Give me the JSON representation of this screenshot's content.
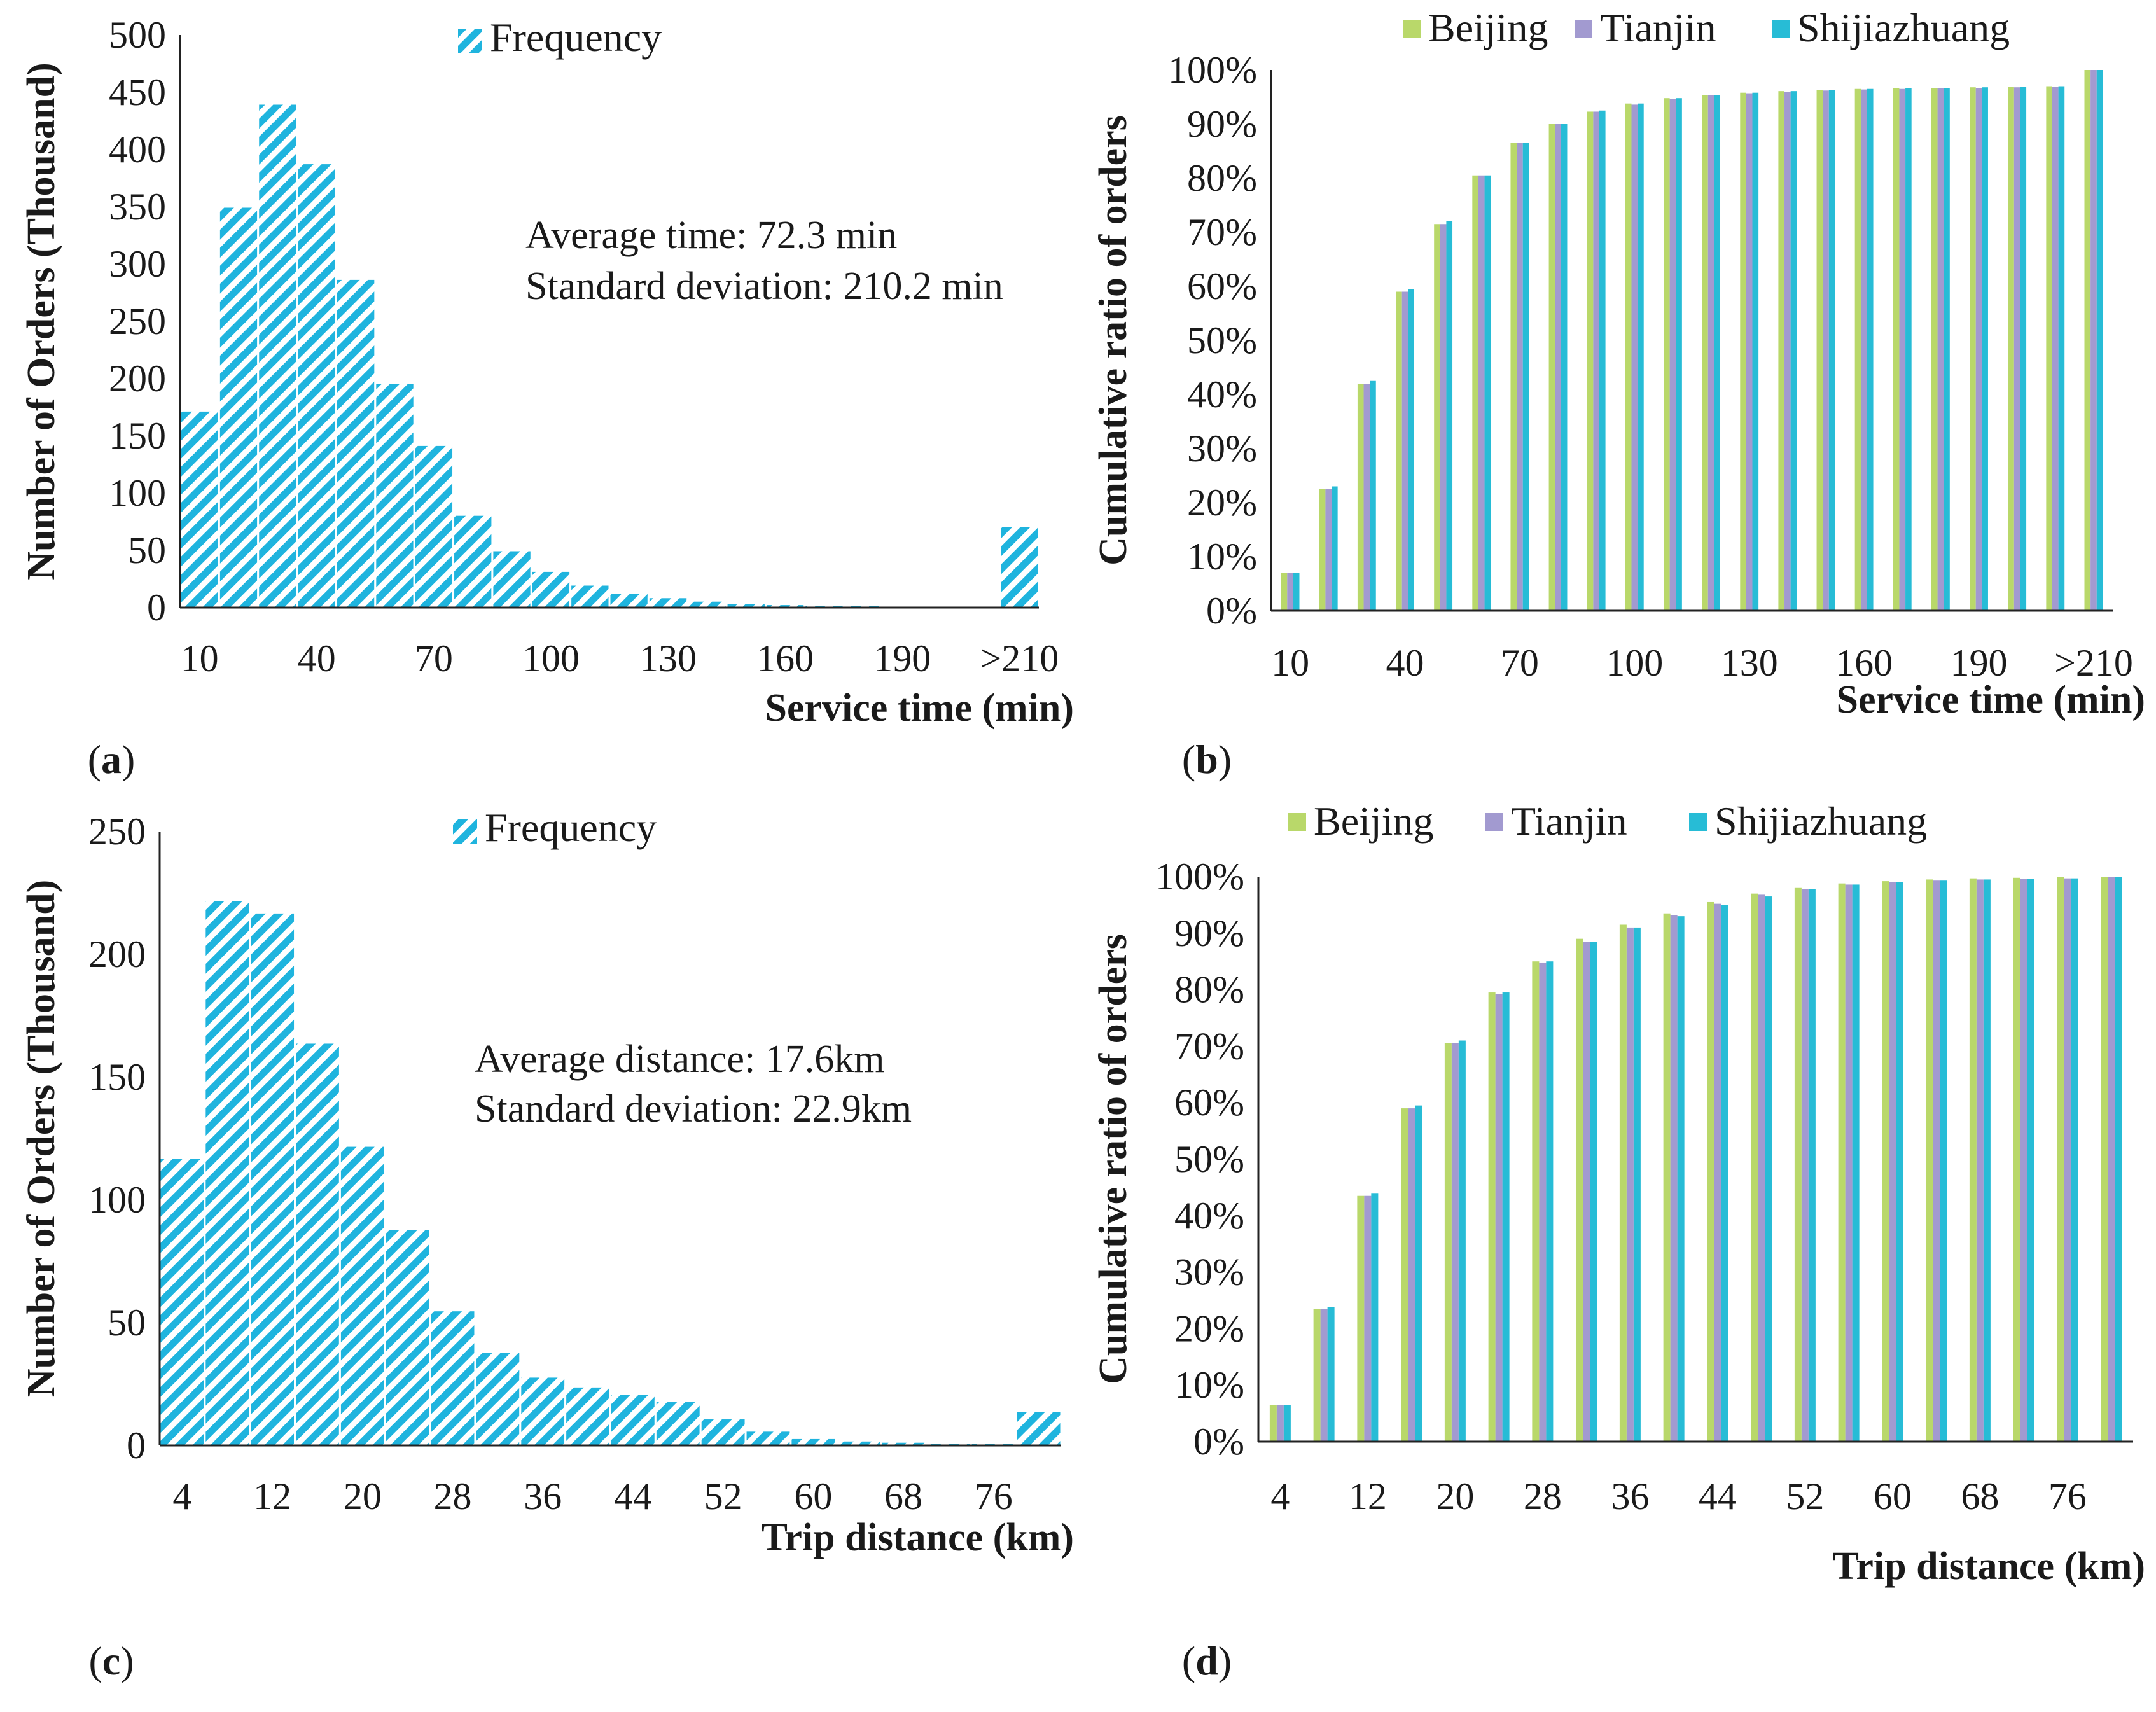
{
  "colors": {
    "hist": "#1fb4de",
    "beijing": "#b9d86a",
    "tianjin": "#a29ad0",
    "shijiazhuang": "#27bcd6",
    "axis": "#222222"
  },
  "chart_data": [
    {
      "panel": "(a)",
      "type": "bar",
      "title": "",
      "legend": [
        "Frequency"
      ],
      "annotations": [
        "Average time: 72.3 min",
        "Standard deviation: 210.2 min"
      ],
      "xlabel": "Service time (min)",
      "ylabel": "Number of Orders (Thousand)",
      "ylim": [
        0,
        500
      ],
      "yticks": [
        "0",
        "50",
        "100",
        "150",
        "200",
        "250",
        "300",
        "350",
        "400",
        "450",
        "500"
      ],
      "xticks": [
        "10",
        "40",
        "70",
        "100",
        "130",
        "160",
        "190",
        ">210"
      ],
      "xtick_positions": [
        0,
        3,
        6,
        9,
        12,
        15,
        18,
        21
      ],
      "values": [
        172,
        350,
        440,
        388,
        287,
        196,
        142,
        81,
        50,
        32,
        20,
        13,
        9,
        6,
        4,
        3,
        2,
        2,
        1,
        1,
        1,
        71
      ]
    },
    {
      "panel": "(b)",
      "type": "bar",
      "legend": [
        "Beijing",
        "Tianjin",
        "Shijiazhuang"
      ],
      "xlabel": "Service time (min)",
      "ylabel": "Cumulative ratio of orders",
      "ylim": [
        0,
        100
      ],
      "yticks": [
        "0%",
        "10%",
        "20%",
        "30%",
        "40%",
        "50%",
        "60%",
        "70%",
        "80%",
        "90%",
        "100%"
      ],
      "xticks": [
        "10",
        "40",
        "70",
        "100",
        "130",
        "160",
        "190",
        ">210"
      ],
      "xtick_positions": [
        0,
        3,
        6,
        9,
        12,
        15,
        18,
        21
      ],
      "series": [
        {
          "name": "Beijing",
          "values": [
            7,
            22.5,
            42,
            59,
            71.5,
            80.5,
            86.5,
            90,
            92.3,
            93.8,
            94.8,
            95.4,
            95.8,
            96.1,
            96.3,
            96.5,
            96.6,
            96.7,
            96.8,
            96.9,
            97,
            100
          ]
        },
        {
          "name": "Tianjin",
          "values": [
            7,
            22.5,
            42,
            59,
            71.5,
            80.5,
            86.5,
            90,
            92.3,
            93.6,
            94.7,
            95.3,
            95.7,
            96,
            96.2,
            96.4,
            96.5,
            96.6,
            96.7,
            96.8,
            96.9,
            100
          ]
        },
        {
          "name": "Shijiazhuang",
          "values": [
            7,
            23,
            42.5,
            59.5,
            72,
            80.5,
            86.5,
            90,
            92.5,
            93.8,
            94.8,
            95.4,
            95.8,
            96.1,
            96.3,
            96.5,
            96.6,
            96.7,
            96.8,
            96.9,
            97,
            100
          ]
        }
      ]
    },
    {
      "panel": "(c)",
      "type": "bar",
      "legend": [
        "Frequency"
      ],
      "annotations": [
        "Average distance: 17.6km",
        "Standard deviation: 22.9km"
      ],
      "xlabel": "Trip distance (km)",
      "ylabel": "Number of Orders (Thousand)",
      "ylim": [
        0,
        250
      ],
      "yticks": [
        "0",
        "50",
        "100",
        "150",
        "200",
        "250"
      ],
      "xticks": [
        "4",
        "12",
        "20",
        "28",
        "36",
        "44",
        "52",
        "60",
        "68",
        "76"
      ],
      "xtick_positions": [
        0,
        2,
        4,
        6,
        8,
        10,
        12,
        14,
        16,
        18
      ],
      "values": [
        117,
        222,
        217,
        164,
        122,
        88,
        55,
        38,
        28,
        24,
        21,
        18,
        11,
        6,
        3,
        2,
        1.5,
        1,
        1,
        14
      ]
    },
    {
      "panel": "(d)",
      "type": "bar",
      "legend": [
        "Beijing",
        "Tianjin",
        "Shijiazhuang"
      ],
      "xlabel": "Trip distance (km)",
      "ylabel": "Cumulative ratio of orders",
      "ylim": [
        0,
        100
      ],
      "yticks": [
        "0%",
        "10%",
        "20%",
        "30%",
        "40%",
        "50%",
        "60%",
        "70%",
        "80%",
        "90%",
        "100%"
      ],
      "xticks": [
        "4",
        "12",
        "20",
        "28",
        "36",
        "44",
        "52",
        "60",
        "68",
        "76"
      ],
      "xtick_positions": [
        0,
        2,
        4,
        6,
        8,
        10,
        12,
        14,
        16,
        18
      ],
      "series": [
        {
          "name": "Beijing",
          "values": [
            6.5,
            23.5,
            43.5,
            59,
            70.5,
            79.5,
            85,
            89,
            91.5,
            93.5,
            95.5,
            97,
            98,
            98.8,
            99.2,
            99.5,
            99.7,
            99.8,
            99.9,
            100
          ]
        },
        {
          "name": "Tianjin",
          "values": [
            6.5,
            23.5,
            43.5,
            59,
            70.5,
            79.2,
            84.8,
            88.5,
            91,
            93.2,
            95.2,
            96.8,
            97.8,
            98.6,
            99,
            99.3,
            99.5,
            99.6,
            99.7,
            100
          ]
        },
        {
          "name": "Shijiazhuang",
          "values": [
            6.5,
            23.8,
            44,
            59.5,
            71,
            79.5,
            85,
            88.5,
            91,
            93,
            95,
            96.5,
            97.8,
            98.6,
            99,
            99.3,
            99.5,
            99.6,
            99.7,
            100
          ]
        }
      ]
    }
  ]
}
